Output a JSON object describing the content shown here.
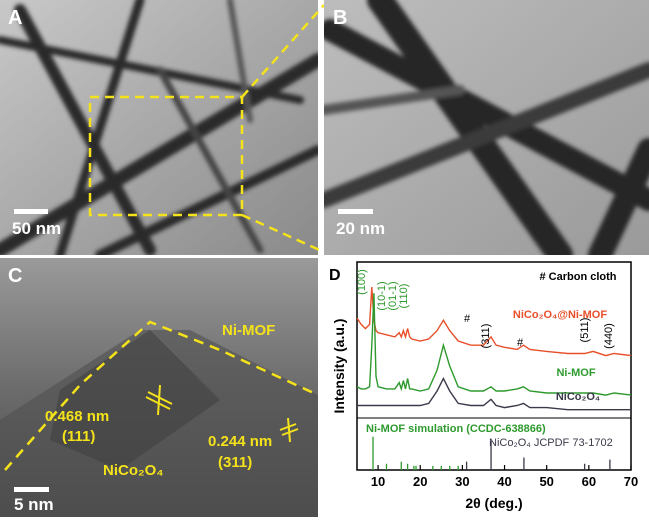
{
  "panels": {
    "A": {
      "label": "A",
      "scale": "50 nm"
    },
    "B": {
      "label": "B",
      "scale": "20 nm"
    },
    "C": {
      "label": "C",
      "scale": "5 nm",
      "annotations": [
        "Ni-MOF",
        "0.468 nm",
        "(111)",
        "0.244 nm",
        "(311)",
        "NiCo₂O₄"
      ]
    }
  },
  "chart_data": {
    "type": "line",
    "panel_label": "D",
    "xlabel": "2θ (deg.)",
    "ylabel": "Intensity (a.u.)",
    "xlim": [
      5,
      70
    ],
    "xticks": [
      10,
      20,
      30,
      40,
      50,
      60,
      70
    ],
    "ylim": [
      0,
      100
    ],
    "x": [
      5,
      6,
      7,
      8,
      8.5,
      9,
      9.5,
      10,
      12,
      14,
      15,
      15.5,
      16,
      16.5,
      17,
      17.5,
      18,
      20,
      22,
      24,
      25.5,
      27,
      29,
      32,
      35,
      36.8,
      38,
      40,
      43,
      44.5,
      46,
      50,
      55,
      59,
      61,
      64,
      66,
      70
    ],
    "series": [
      {
        "name": "NiCo₂O₄@Ni-MOF",
        "color": "#e8502a",
        "values": [
          73,
          70,
          68,
          70,
          88,
          72,
          67,
          66,
          65,
          64,
          66,
          64,
          67,
          64,
          68,
          64,
          63,
          62,
          63,
          67,
          72,
          67,
          62,
          60,
          60,
          64,
          60,
          59,
          58,
          60,
          58,
          57,
          56,
          56,
          57,
          55,
          56,
          55
        ]
      },
      {
        "name": "Ni-MOF",
        "color": "#2e9a2e",
        "values": [
          40,
          39,
          39,
          40,
          60,
          85,
          45,
          40,
          39,
          39,
          42,
          39,
          43,
          39,
          44,
          39,
          39,
          38,
          39,
          48,
          60,
          50,
          40,
          38,
          38,
          40,
          38,
          38,
          39,
          40,
          38,
          37,
          37,
          37,
          37,
          36,
          37,
          36
        ]
      },
      {
        "name": "NiCo₂O₄",
        "color": "#3a3a4a",
        "values": [
          31,
          31,
          31,
          31,
          31,
          31,
          31,
          31,
          31,
          31,
          31,
          31,
          31,
          31,
          31,
          31,
          31,
          31,
          32,
          38,
          44,
          38,
          32,
          31,
          31,
          34,
          31,
          30,
          31,
          32,
          30,
          30,
          29,
          29,
          29,
          29,
          29,
          29
        ]
      }
    ],
    "sticks": [
      {
        "name": "Ni-MOF simulation (CCDC-638866)",
        "color": "#2e9a2e",
        "x": [
          8.8,
          12,
          15.5,
          17,
          18.5,
          19,
          23,
          25,
          27,
          29
        ],
        "values": [
          16,
          3,
          4,
          3,
          2,
          2,
          2,
          2,
          2,
          2
        ]
      },
      {
        "name": "NiCo₂O₄ JCPDF 73-1702",
        "color": "#3a3a4a",
        "x": [
          31,
          36.8,
          44.6,
          59,
          65
        ],
        "values": [
          4,
          14,
          6,
          3,
          5
        ]
      }
    ],
    "annotations": [
      "(100)",
      "(10-1)",
      "(01-1)",
      "(110)",
      "#",
      "(311)",
      "#",
      "(511)",
      "(440)",
      "# Carbon cloth"
    ]
  }
}
